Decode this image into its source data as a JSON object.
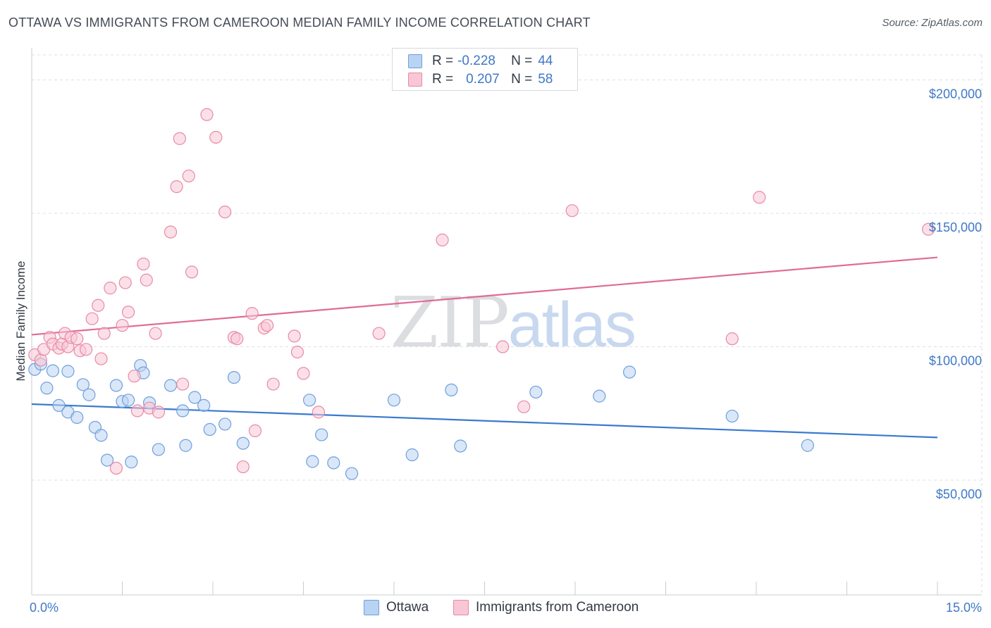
{
  "header": {
    "title": "OTTAWA VS IMMIGRANTS FROM CAMEROON MEDIAN FAMILY INCOME CORRELATION CHART",
    "source": "Source: ZipAtlas.com"
  },
  "watermark": {
    "zip": "ZIP",
    "atlas": "atlas"
  },
  "legend": {
    "rows": [
      {
        "r_label": "R =",
        "r_value": "-0.228",
        "n_label": "N =",
        "n_value": "44"
      },
      {
        "r_label": "R =",
        "r_value": "0.207",
        "n_label": "N =",
        "n_value": "58"
      }
    ]
  },
  "colors": {
    "ottawa_fill": "#b9d3f3",
    "ottawa_stroke": "#6f9fdc",
    "ottawa_line": "#3a79cf",
    "cameroon_fill": "#f8c6d5",
    "cameroon_stroke": "#e88aa8",
    "cameroon_line": "#e06b95",
    "grid": "#dcdfe4",
    "tick_text": "#3f78c6"
  },
  "chart_data": {
    "type": "scatter",
    "title": "OTTAWA VS IMMIGRANTS FROM CAMEROON MEDIAN FAMILY INCOME CORRELATION CHART",
    "xlabel": "",
    "ylabel": "Median Family Income",
    "xlim": [
      0,
      15
    ],
    "ylim": [
      7000,
      212000
    ],
    "x_tick_labels": [
      "0.0%",
      "15.0%"
    ],
    "y_ticks": [
      {
        "value": 50000,
        "label": "$50,000"
      },
      {
        "value": 100000,
        "label": "$100,000"
      },
      {
        "value": 150000,
        "label": "$150,000"
      },
      {
        "value": 200000,
        "label": "$200,000"
      }
    ],
    "series": [
      {
        "name": "Ottawa",
        "r": -0.228,
        "n": 44,
        "trend": {
          "x": [
            0,
            15
          ],
          "y": [
            78500,
            66000
          ]
        },
        "points": [
          [
            0.05,
            91500
          ],
          [
            0.15,
            93500
          ],
          [
            0.25,
            84500
          ],
          [
            0.35,
            91000
          ],
          [
            0.45,
            78000
          ],
          [
            0.6,
            75500
          ],
          [
            0.6,
            90800
          ],
          [
            0.75,
            73500
          ],
          [
            0.85,
            85800
          ],
          [
            0.95,
            82000
          ],
          [
            1.05,
            69800
          ],
          [
            1.15,
            66800
          ],
          [
            1.25,
            57500
          ],
          [
            1.4,
            85500
          ],
          [
            1.5,
            79500
          ],
          [
            1.6,
            80000
          ],
          [
            1.65,
            56800
          ],
          [
            1.8,
            93000
          ],
          [
            1.85,
            90200
          ],
          [
            1.95,
            79000
          ],
          [
            2.1,
            61500
          ],
          [
            2.3,
            85500
          ],
          [
            2.5,
            76000
          ],
          [
            2.55,
            63000
          ],
          [
            2.7,
            81000
          ],
          [
            2.85,
            78000
          ],
          [
            2.95,
            69000
          ],
          [
            3.2,
            71000
          ],
          [
            3.35,
            88500
          ],
          [
            3.5,
            63800
          ],
          [
            4.6,
            80000
          ],
          [
            4.65,
            57000
          ],
          [
            4.8,
            67000
          ],
          [
            5.0,
            56500
          ],
          [
            5.3,
            52500
          ],
          [
            6.0,
            80000
          ],
          [
            6.3,
            59500
          ],
          [
            6.95,
            83800
          ],
          [
            7.1,
            62800
          ],
          [
            8.35,
            83000
          ],
          [
            9.4,
            81500
          ],
          [
            9.9,
            90500
          ],
          [
            11.6,
            74000
          ],
          [
            12.85,
            63000
          ]
        ]
      },
      {
        "name": "Immigrants from Cameroon",
        "r": 0.207,
        "n": 58,
        "trend": {
          "x": [
            0,
            15
          ],
          "y": [
            104500,
            133500
          ]
        },
        "points": [
          [
            0.05,
            97000
          ],
          [
            0.15,
            95000
          ],
          [
            0.2,
            99000
          ],
          [
            0.3,
            103500
          ],
          [
            0.35,
            101000
          ],
          [
            0.45,
            99500
          ],
          [
            0.5,
            101000
          ],
          [
            0.55,
            105000
          ],
          [
            0.6,
            100000
          ],
          [
            0.65,
            103500
          ],
          [
            0.75,
            103000
          ],
          [
            0.8,
            98500
          ],
          [
            0.9,
            99000
          ],
          [
            1.0,
            110500
          ],
          [
            1.1,
            115500
          ],
          [
            1.15,
            95500
          ],
          [
            1.2,
            105000
          ],
          [
            1.3,
            122000
          ],
          [
            1.4,
            54500
          ],
          [
            1.5,
            108000
          ],
          [
            1.55,
            124000
          ],
          [
            1.6,
            113000
          ],
          [
            1.7,
            89000
          ],
          [
            1.75,
            76000
          ],
          [
            1.85,
            131000
          ],
          [
            1.9,
            125000
          ],
          [
            1.95,
            77000
          ],
          [
            2.05,
            105000
          ],
          [
            2.1,
            75500
          ],
          [
            2.3,
            143000
          ],
          [
            2.4,
            160000
          ],
          [
            2.45,
            178000
          ],
          [
            2.5,
            86000
          ],
          [
            2.6,
            164000
          ],
          [
            2.65,
            128000
          ],
          [
            2.9,
            187000
          ],
          [
            3.05,
            178500
          ],
          [
            3.2,
            150500
          ],
          [
            3.35,
            103500
          ],
          [
            3.4,
            103000
          ],
          [
            3.5,
            55000
          ],
          [
            3.65,
            112500
          ],
          [
            3.7,
            68500
          ],
          [
            3.85,
            107000
          ],
          [
            3.9,
            108000
          ],
          [
            4.0,
            86000
          ],
          [
            4.35,
            104000
          ],
          [
            4.4,
            98000
          ],
          [
            4.5,
            90000
          ],
          [
            4.75,
            75500
          ],
          [
            5.75,
            105000
          ],
          [
            6.8,
            140000
          ],
          [
            7.8,
            100000
          ],
          [
            8.15,
            77500
          ],
          [
            8.95,
            151000
          ],
          [
            11.6,
            103000
          ],
          [
            12.05,
            156000
          ],
          [
            14.85,
            144000
          ]
        ]
      }
    ]
  }
}
